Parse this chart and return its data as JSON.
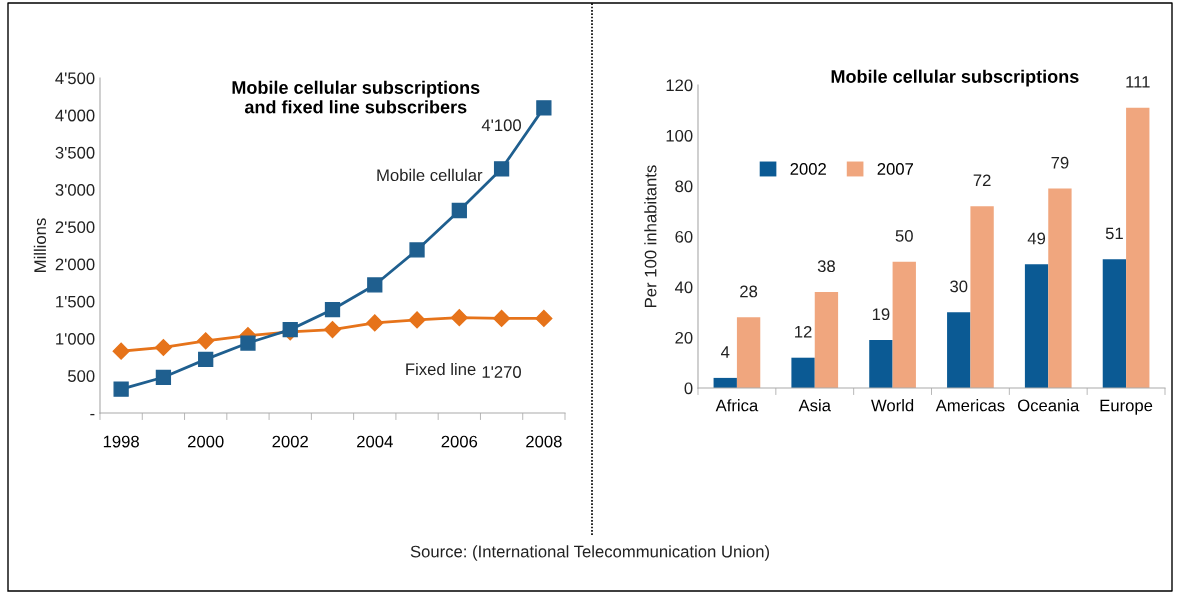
{
  "chart_data": [
    {
      "type": "line",
      "title": "Mobile cellular subscriptions\nand fixed line subscribers",
      "ylabel": "Millions",
      "categories": [
        "1998",
        null,
        "2000",
        null,
        "2002",
        null,
        "2004",
        null,
        "2006",
        null,
        "2008"
      ],
      "series": [
        {
          "name": "Mobile cellular",
          "color": "#1f5f8f",
          "marker": "square",
          "values": [
            320,
            480,
            720,
            940,
            1120,
            1390,
            1720,
            2190,
            2720,
            3280,
            4100
          ],
          "value_labels": [
            null,
            null,
            null,
            null,
            null,
            null,
            null,
            null,
            null,
            null,
            "4'100"
          ]
        },
        {
          "name": "Fixed line",
          "color": "#e6731a",
          "marker": "diamond",
          "values": [
            830,
            880,
            970,
            1040,
            1090,
            1120,
            1210,
            1250,
            1280,
            1270,
            1270
          ],
          "value_labels": [
            null,
            null,
            null,
            null,
            null,
            null,
            null,
            null,
            null,
            null,
            "1'270"
          ]
        }
      ],
      "ylim": [
        0,
        4500
      ],
      "yticks": [
        {
          "value": 0,
          "label": "-"
        },
        {
          "value": 500,
          "label": "500"
        },
        {
          "value": 1000,
          "label": "1'000"
        },
        {
          "value": 1500,
          "label": "1'500"
        },
        {
          "value": 2000,
          "label": "2'000"
        },
        {
          "value": 2500,
          "label": "2'500"
        },
        {
          "value": 3000,
          "label": "3'000"
        },
        {
          "value": 3500,
          "label": "3'500"
        },
        {
          "value": 4000,
          "label": "4'000"
        },
        {
          "value": 4500,
          "label": "4'500"
        }
      ],
      "grid": false,
      "annotations": [
        "Source: (International Telecommunication Union)"
      ]
    },
    {
      "type": "bar",
      "title": "Mobile cellular subscriptions",
      "ylabel": "Per 100 inhabitants",
      "categories": [
        "Africa",
        "Asia",
        "World",
        "Americas",
        "Oceania",
        "Europe"
      ],
      "series": [
        {
          "name": "2002",
          "color": "#0b5a94",
          "values": [
            4,
            12,
            19,
            30,
            49,
            51
          ]
        },
        {
          "name": "2007",
          "color": "#f0a67e",
          "values": [
            28,
            38,
            50,
            72,
            79,
            111
          ]
        }
      ],
      "ylim": [
        0,
        120
      ],
      "yticks": [
        0,
        20,
        40,
        60,
        80,
        100,
        120
      ],
      "data_labels": true,
      "grid": false,
      "legend": "top left"
    }
  ]
}
